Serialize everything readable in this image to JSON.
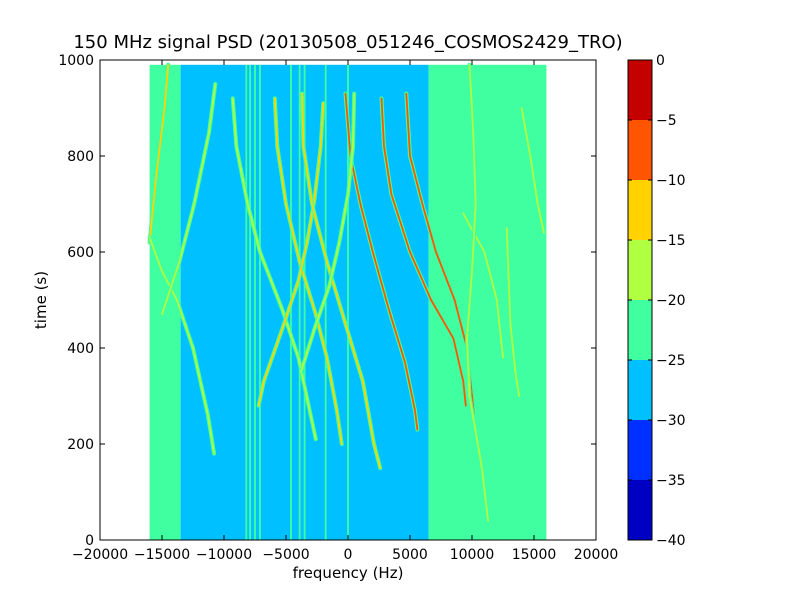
{
  "figure": {
    "title": "150 MHz signal PSD (20130508_051246_COSMOS2429_TRO)",
    "xlabel": "frequency (Hz)",
    "ylabel": "time (s)"
  },
  "chart_data": {
    "type": "heatmap",
    "title": "150 MHz signal PSD (20130508_051246_COSMOS2429_TRO)",
    "xlabel": "frequency (Hz)",
    "ylabel": "time (s)",
    "xlim": [
      -20000,
      20000
    ],
    "ylim": [
      0,
      1000
    ],
    "x_ticks": [
      -20000,
      -15000,
      -10000,
      -5000,
      0,
      5000,
      10000,
      15000,
      20000
    ],
    "x_tick_labels": [
      "−20000",
      "−15000",
      "−10000",
      "−5000",
      "0",
      "5000",
      "10000",
      "15000",
      "20000"
    ],
    "y_ticks": [
      0,
      200,
      400,
      600,
      800,
      1000
    ],
    "y_tick_labels": [
      "0",
      "200",
      "400",
      "600",
      "800",
      "1000"
    ],
    "data_extent": {
      "freq": [
        -16000,
        16000
      ],
      "time": [
        0,
        990
      ]
    },
    "colorbar": {
      "range": [
        -40,
        0
      ],
      "ticks": [
        0,
        -5,
        -10,
        -15,
        -20,
        -25,
        -30,
        -35,
        -40
      ],
      "tick_labels": [
        "0",
        "−5",
        "−10",
        "−15",
        "−20",
        "−25",
        "−30",
        "−35",
        "−40"
      ],
      "levels": [
        {
          "from": -40,
          "to": -35,
          "color": "#0000c4"
        },
        {
          "from": -35,
          "to": -30,
          "color": "#0030ff"
        },
        {
          "from": -30,
          "to": -25,
          "color": "#00c0ff"
        },
        {
          "from": -25,
          "to": -20,
          "color": "#40ffa0"
        },
        {
          "from": -20,
          "to": -15,
          "color": "#b0ff40"
        },
        {
          "from": -15,
          "to": -10,
          "color": "#ffd200"
        },
        {
          "from": -10,
          "to": -5,
          "color": "#ff5500"
        },
        {
          "from": -5,
          "to": 0,
          "color": "#c40000"
        }
      ]
    },
    "background_regions": [
      {
        "freq": [
          -16000,
          -13500
        ],
        "level": -22,
        "note": "noise floor (green)"
      },
      {
        "freq": [
          -13500,
          6500
        ],
        "level": -27,
        "note": "noise floor (light blue)"
      },
      {
        "freq": [
          6500,
          16000
        ],
        "level": -22,
        "note": "noise floor (green)"
      }
    ],
    "stationary_lines": [
      {
        "freq": -8200,
        "level": -22
      },
      {
        "freq": -7900,
        "level": -22
      },
      {
        "freq": -7500,
        "level": -22
      },
      {
        "freq": -7100,
        "level": -22
      },
      {
        "freq": -4600,
        "level": -22
      },
      {
        "freq": -3900,
        "level": -22
      },
      {
        "freq": -3500,
        "level": -22
      },
      {
        "freq": -1800,
        "level": -22
      },
      {
        "freq": 0,
        "level": -22
      }
    ],
    "tracks": [
      {
        "level": -14,
        "points": [
          [
            -14500,
            990
          ],
          [
            -14800,
            900
          ],
          [
            -15500,
            750
          ],
          [
            -16000,
            620
          ]
        ]
      },
      {
        "level": -16,
        "points": [
          [
            -16000,
            630
          ],
          [
            -15000,
            560
          ],
          [
            -13800,
            500
          ],
          [
            -12500,
            400
          ],
          [
            -11300,
            260
          ],
          [
            -10800,
            180
          ]
        ]
      },
      {
        "level": -18,
        "points": [
          [
            -10700,
            950
          ],
          [
            -11200,
            850
          ],
          [
            -12400,
            700
          ],
          [
            -13600,
            580
          ],
          [
            -15000,
            470
          ]
        ]
      },
      {
        "level": -17,
        "points": [
          [
            -9300,
            920
          ],
          [
            -9000,
            820
          ],
          [
            -8100,
            700
          ],
          [
            -7100,
            600
          ],
          [
            -5300,
            480
          ],
          [
            -4000,
            380
          ],
          [
            -2600,
            210
          ]
        ]
      },
      {
        "level": -14,
        "points": [
          [
            -5900,
            920
          ],
          [
            -5700,
            820
          ],
          [
            -5000,
            700
          ],
          [
            -3900,
            580
          ],
          [
            -2600,
            470
          ],
          [
            -1700,
            380
          ],
          [
            -900,
            270
          ],
          [
            -500,
            200
          ]
        ]
      },
      {
        "level": -14,
        "points": [
          [
            -2000,
            910
          ],
          [
            -2200,
            820
          ],
          [
            -2700,
            710
          ],
          [
            -3300,
            620
          ],
          [
            -4000,
            540
          ],
          [
            -5300,
            440
          ],
          [
            -6800,
            330
          ],
          [
            -7200,
            280
          ]
        ]
      },
      {
        "level": -10,
        "points": [
          [
            -3700,
            930
          ],
          [
            -3600,
            820
          ],
          [
            -2900,
            700
          ],
          [
            -1700,
            580
          ],
          [
            -200,
            450
          ],
          [
            1200,
            330
          ],
          [
            2100,
            200
          ],
          [
            2600,
            150
          ]
        ]
      },
      {
        "level": -6,
        "points": [
          [
            -200,
            930
          ],
          [
            200,
            800
          ],
          [
            1000,
            700
          ],
          [
            2000,
            600
          ],
          [
            3300,
            480
          ],
          [
            4600,
            370
          ],
          [
            5400,
            270
          ],
          [
            5600,
            230
          ]
        ]
      },
      {
        "level": -18,
        "points": [
          [
            500,
            930
          ],
          [
            400,
            820
          ],
          [
            0,
            720
          ],
          [
            -700,
            620
          ],
          [
            -1500,
            530
          ],
          [
            -2700,
            440
          ],
          [
            -3800,
            350
          ]
        ]
      },
      {
        "level": -7,
        "points": [
          [
            2700,
            920
          ],
          [
            2900,
            820
          ],
          [
            3500,
            720
          ],
          [
            5000,
            600
          ],
          [
            6700,
            500
          ],
          [
            8500,
            420
          ],
          [
            9300,
            330
          ],
          [
            9500,
            280
          ]
        ]
      },
      {
        "level": -8,
        "points": [
          [
            4700,
            930
          ],
          [
            5000,
            800
          ],
          [
            6000,
            700
          ],
          [
            7100,
            600
          ],
          [
            8600,
            500
          ],
          [
            9600,
            400
          ],
          [
            10000,
            300
          ],
          [
            10200,
            250
          ]
        ]
      },
      {
        "level": -18,
        "points": [
          [
            12800,
            650
          ],
          [
            13100,
            450
          ],
          [
            13500,
            350
          ],
          [
            13800,
            300
          ]
        ]
      },
      {
        "level": -16,
        "points": [
          [
            14000,
            900
          ],
          [
            14700,
            800
          ],
          [
            15300,
            700
          ],
          [
            15800,
            640
          ]
        ]
      },
      {
        "level": -18,
        "points": [
          [
            9300,
            680
          ],
          [
            11000,
            600
          ],
          [
            12000,
            500
          ],
          [
            12500,
            380
          ]
        ]
      },
      {
        "level": -15,
        "points": [
          [
            9800,
            990
          ],
          [
            10100,
            850
          ],
          [
            10300,
            700
          ],
          [
            10000,
            560
          ],
          [
            9600,
            420
          ],
          [
            9800,
            300
          ],
          [
            10800,
            150
          ],
          [
            11300,
            40
          ]
        ]
      }
    ]
  }
}
